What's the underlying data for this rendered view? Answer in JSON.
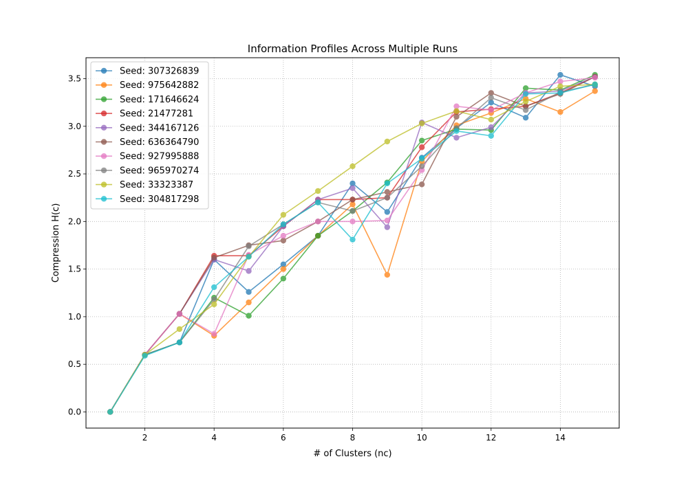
{
  "chart_data": {
    "type": "line",
    "title": "Information Profiles Across Multiple Runs",
    "xlabel": "# of Clusters (nc)",
    "ylabel": "Compression H(c)",
    "xlim": [
      0.3,
      15.7
    ],
    "ylim": [
      -0.17,
      3.72
    ],
    "xticks": [
      2,
      4,
      6,
      8,
      10,
      12,
      14
    ],
    "yticks": [
      0.0,
      0.5,
      1.0,
      1.5,
      2.0,
      2.5,
      3.0,
      3.5
    ],
    "grid": true,
    "legend_position": "upper-left",
    "x": [
      1,
      2,
      3,
      4,
      5,
      6,
      7,
      8,
      9,
      10,
      11,
      12,
      13,
      14,
      15
    ],
    "series": [
      {
        "name": "Seed: 307326839",
        "color": "#1f77b4",
        "values": [
          0.0,
          0.6,
          0.73,
          1.6,
          1.26,
          1.55,
          1.85,
          2.4,
          2.1,
          2.67,
          2.98,
          3.25,
          3.09,
          3.54,
          3.42
        ]
      },
      {
        "name": "Seed: 975642882",
        "color": "#ff7f0e",
        "values": [
          0.0,
          0.6,
          1.03,
          0.8,
          1.15,
          1.5,
          1.85,
          2.18,
          1.44,
          2.63,
          3.01,
          3.14,
          3.29,
          3.15,
          3.37
        ]
      },
      {
        "name": "Seed: 171646624",
        "color": "#2ca02c",
        "values": [
          0.0,
          0.6,
          0.73,
          1.2,
          1.01,
          1.4,
          1.85,
          2.11,
          2.41,
          2.85,
          2.97,
          2.96,
          3.4,
          3.38,
          3.54
        ]
      },
      {
        "name": "Seed: 21477281",
        "color": "#d62728",
        "values": [
          0.0,
          0.6,
          1.03,
          1.64,
          1.64,
          1.95,
          2.23,
          2.23,
          2.25,
          2.78,
          3.15,
          3.18,
          3.21,
          3.35,
          3.52
        ]
      },
      {
        "name": "Seed: 344167126",
        "color": "#9467bd",
        "values": [
          0.0,
          0.6,
          1.03,
          1.6,
          1.48,
          1.95,
          2.23,
          2.35,
          1.94,
          3.04,
          2.88,
          2.99,
          3.35,
          3.37,
          3.52
        ]
      },
      {
        "name": "Seed: 636364790",
        "color": "#8c564b",
        "values": [
          0.0,
          0.6,
          1.03,
          1.62,
          1.75,
          1.8,
          2.0,
          2.23,
          2.31,
          2.39,
          3.1,
          3.35,
          3.21,
          3.34,
          3.52
        ]
      },
      {
        "name": "Seed: 927995888",
        "color": "#e377c2",
        "values": [
          0.0,
          0.6,
          1.03,
          0.82,
          1.65,
          1.85,
          2.0,
          2.0,
          2.01,
          2.54,
          3.21,
          3.17,
          3.35,
          3.47,
          3.51
        ]
      },
      {
        "name": "Seed: 965970274",
        "color": "#7f7f7f",
        "values": [
          0.0,
          0.6,
          0.73,
          1.18,
          1.74,
          1.97,
          2.2,
          2.11,
          2.25,
          2.58,
          2.98,
          3.3,
          3.17,
          3.36,
          3.44
        ]
      },
      {
        "name": "Seed: 33323387",
        "color": "#bcbd22",
        "values": [
          0.0,
          0.6,
          0.87,
          1.13,
          1.63,
          2.07,
          2.32,
          2.58,
          2.84,
          3.03,
          3.16,
          3.07,
          3.26,
          3.42,
          3.44
        ]
      },
      {
        "name": "Seed: 304817298",
        "color": "#17becf",
        "values": [
          0.0,
          0.59,
          0.73,
          1.31,
          1.63,
          1.97,
          2.2,
          1.81,
          2.4,
          2.66,
          2.95,
          2.9,
          3.34,
          3.35,
          3.44
        ]
      }
    ]
  }
}
